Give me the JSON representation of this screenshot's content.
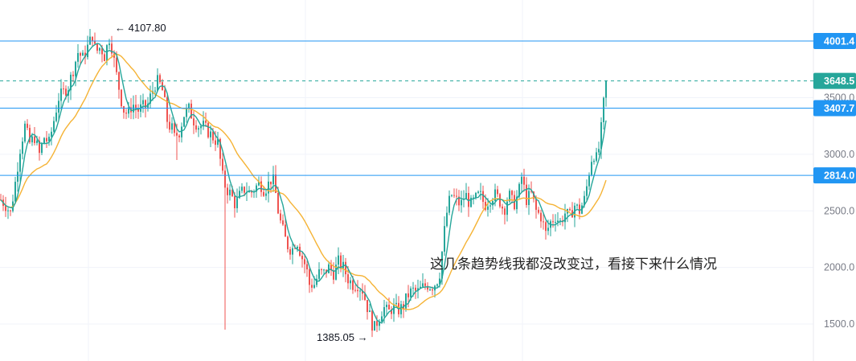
{
  "colors": {
    "up": "#26a69a",
    "down": "#ef5350",
    "ma_fast": "#26a69a",
    "ma_slow": "#f5b335",
    "hline": "#2196f3",
    "price_line": "#26a69a",
    "grid": "#f0f3fa"
  },
  "annotations": {
    "high_label": "← 4107.80",
    "low_label": "1385.05 →",
    "note": "这几条趋势线我都没改变过，看接下来什么情况"
  },
  "price_tags": [
    {
      "text": "4001.4",
      "kind": "hline"
    },
    {
      "text": "3648.5",
      "kind": "current"
    },
    {
      "text": "3407.7",
      "kind": "hline"
    },
    {
      "text": "2814.0",
      "kind": "hline"
    }
  ],
  "chart_data": {
    "type": "candlestick",
    "title": "",
    "xlabel": "",
    "ylabel": "",
    "ylim": [
      1250,
      4300
    ],
    "y_ticks": [
      {
        "value": 3500,
        "label": "3500.0"
      },
      {
        "value": 3000,
        "label": "3000.0"
      },
      {
        "value": 2500,
        "label": "2500.0"
      },
      {
        "value": 2000,
        "label": "2000.0"
      },
      {
        "value": 1500,
        "label": "1500.0"
      }
    ],
    "horizontal_lines": [
      4001.4,
      3407.7,
      2814.0
    ],
    "current_price": 3648.5,
    "extremes": {
      "high": 4107.8,
      "low": 1385.05
    },
    "grid": true,
    "legend": "none",
    "close_path": [
      [
        0,
        2600
      ],
      [
        6,
        2550
      ],
      [
        12,
        2480
      ],
      [
        18,
        2750
      ],
      [
        24,
        3050
      ],
      [
        30,
        3250
      ],
      [
        36,
        3100
      ],
      [
        42,
        3150
      ],
      [
        48,
        3000
      ],
      [
        54,
        3150
      ],
      [
        60,
        3100
      ],
      [
        66,
        3300
      ],
      [
        72,
        3500
      ],
      [
        78,
        3550
      ],
      [
        84,
        3600
      ],
      [
        90,
        3750
      ],
      [
        96,
        3900
      ],
      [
        102,
        3850
      ],
      [
        108,
        3950
      ],
      [
        114,
        4050
      ],
      [
        118,
        3900
      ],
      [
        124,
        3950
      ],
      [
        130,
        3850
      ],
      [
        134,
        4050
      ],
      [
        138,
        3950
      ],
      [
        144,
        3700
      ],
      [
        148,
        3550
      ],
      [
        152,
        3400
      ],
      [
        158,
        3350
      ],
      [
        164,
        3450
      ],
      [
        170,
        3380
      ],
      [
        176,
        3420
      ],
      [
        182,
        3420
      ],
      [
        188,
        3550
      ],
      [
        194,
        3650
      ],
      [
        200,
        3600
      ],
      [
        204,
        3450
      ],
      [
        208,
        3250
      ],
      [
        212,
        3250
      ],
      [
        216,
        3150
      ],
      [
        222,
        3200
      ],
      [
        228,
        3350
      ],
      [
        234,
        3400
      ],
      [
        240,
        3300
      ],
      [
        246,
        3250
      ],
      [
        252,
        3250
      ],
      [
        258,
        3200
      ],
      [
        264,
        3150
      ],
      [
        270,
        3100
      ],
      [
        276,
        2800
      ],
      [
        280,
        2700
      ],
      [
        286,
        2650
      ],
      [
        292,
        2550
      ],
      [
        298,
        2650
      ],
      [
        304,
        2700
      ],
      [
        310,
        2650
      ],
      [
        316,
        2700
      ],
      [
        322,
        2750
      ],
      [
        328,
        2680
      ],
      [
        334,
        2750
      ],
      [
        338,
        2800
      ],
      [
        342,
        2650
      ],
      [
        346,
        2450
      ],
      [
        350,
        2350
      ],
      [
        356,
        2200
      ],
      [
        362,
        2150
      ],
      [
        368,
        2250
      ],
      [
        374,
        2100
      ],
      [
        380,
        2000
      ],
      [
        384,
        1850
      ],
      [
        390,
        1850
      ],
      [
        396,
        1950
      ],
      [
        402,
        1950
      ],
      [
        408,
        2000
      ],
      [
        414,
        1950
      ],
      [
        420,
        2050
      ],
      [
        426,
        2000
      ],
      [
        432,
        1900
      ],
      [
        438,
        1850
      ],
      [
        444,
        1850
      ],
      [
        450,
        1800
      ],
      [
        456,
        1650
      ],
      [
        460,
        1550
      ],
      [
        464,
        1450
      ],
      [
        470,
        1550
      ],
      [
        476,
        1650
      ],
      [
        482,
        1600
      ],
      [
        488,
        1650
      ],
      [
        494,
        1620
      ],
      [
        500,
        1650
      ],
      [
        506,
        1750
      ],
      [
        512,
        1800
      ],
      [
        518,
        1780
      ],
      [
        524,
        1820
      ],
      [
        530,
        1850
      ],
      [
        536,
        1830
      ],
      [
        542,
        1870
      ],
      [
        546,
        1950
      ],
      [
        550,
        2200
      ],
      [
        554,
        2450
      ],
      [
        560,
        2650
      ],
      [
        566,
        2600
      ],
      [
        572,
        2550
      ],
      [
        578,
        2650
      ],
      [
        584,
        2550
      ],
      [
        590,
        2600
      ],
      [
        596,
        2650
      ],
      [
        602,
        2550
      ],
      [
        608,
        2600
      ],
      [
        614,
        2650
      ],
      [
        620,
        2600
      ],
      [
        626,
        2500
      ],
      [
        632,
        2650
      ],
      [
        638,
        2550
      ],
      [
        644,
        2650
      ],
      [
        648,
        2800
      ],
      [
        654,
        2600
      ],
      [
        660,
        2650
      ],
      [
        666,
        2500
      ],
      [
        672,
        2450
      ],
      [
        678,
        2300
      ],
      [
        684,
        2400
      ],
      [
        690,
        2450
      ],
      [
        696,
        2400
      ],
      [
        702,
        2480
      ],
      [
        708,
        2450
      ],
      [
        714,
        2550
      ],
      [
        720,
        2500
      ],
      [
        726,
        2600
      ],
      [
        730,
        2750
      ],
      [
        734,
        2950
      ],
      [
        738,
        3000
      ],
      [
        742,
        2950
      ],
      [
        746,
        3150
      ],
      [
        750,
        3450
      ],
      [
        754,
        3648.5
      ]
    ]
  }
}
